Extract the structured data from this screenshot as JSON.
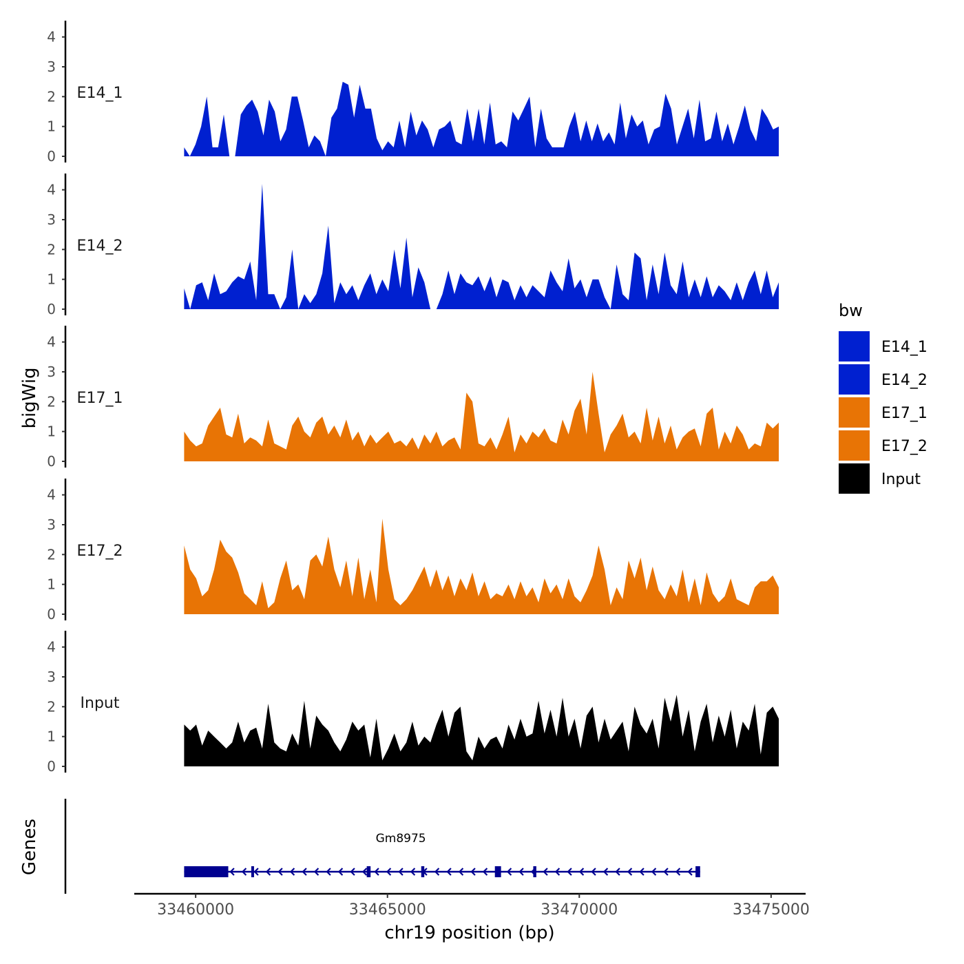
{
  "chart_data": {
    "type": "area",
    "ylabel": "bigWig",
    "xlabel": "chr19 position (bp)",
    "region": [
      33459700,
      33475200
    ],
    "xlim": [
      33458400,
      33475900
    ],
    "x_ticks": [
      33460000,
      33465000,
      33470000,
      33475000
    ],
    "x_tick_labels": [
      "33460000",
      "33465000",
      "33470000",
      "33475000"
    ],
    "ylim": [
      0,
      4.5
    ],
    "y_ticks": [
      0,
      1,
      2,
      3,
      4
    ],
    "y_tick_labels": [
      "0",
      "1",
      "2",
      "3",
      "4"
    ],
    "legend": {
      "title": "bw",
      "position": "right",
      "entries": [
        {
          "label": "E14_1",
          "color": "#0020D0"
        },
        {
          "label": "E14_2",
          "color": "#0020D0"
        },
        {
          "label": "E17_1",
          "color": "#E87405"
        },
        {
          "label": "E17_2",
          "color": "#E87405"
        },
        {
          "label": "Input",
          "color": "#000000"
        }
      ]
    },
    "tracks": [
      {
        "name": "E14_1",
        "color": "#0020D0",
        "values": [
          0.3,
          0.0,
          0.4,
          1.0,
          2.0,
          0.3,
          0.3,
          1.4,
          0.0,
          0.0,
          1.4,
          1.7,
          1.9,
          1.5,
          0.7,
          1.9,
          1.5,
          0.5,
          0.9,
          2.0,
          2.0,
          1.2,
          0.3,
          0.7,
          0.5,
          0.0,
          1.3,
          1.6,
          2.5,
          2.4,
          1.3,
          2.4,
          1.6,
          1.6,
          0.6,
          0.2,
          0.5,
          0.3,
          1.2,
          0.3,
          1.5,
          0.7,
          1.2,
          0.9,
          0.3,
          0.9,
          1.0,
          1.2,
          0.5,
          0.4,
          1.6,
          0.5,
          1.6,
          0.4,
          1.8,
          0.4,
          0.5,
          0.3,
          1.5,
          1.2,
          1.6,
          2.0,
          0.3,
          1.6,
          0.6,
          0.3,
          0.3,
          0.3,
          1.0,
          1.5,
          0.5,
          1.2,
          0.5,
          1.1,
          0.5,
          0.8,
          0.4,
          1.8,
          0.6,
          1.4,
          1.0,
          1.2,
          0.4,
          0.9,
          1.0,
          2.1,
          1.6,
          0.4,
          1.0,
          1.6,
          0.6,
          1.9,
          0.5,
          0.6,
          1.5,
          0.5,
          1.1,
          0.4,
          1.0,
          1.7,
          0.9,
          0.5,
          1.6,
          1.3,
          0.9,
          1.0
        ]
      },
      {
        "name": "E14_2",
        "color": "#0020D0",
        "values": [
          0.7,
          0.0,
          0.8,
          0.9,
          0.3,
          1.2,
          0.5,
          0.6,
          0.9,
          1.1,
          1.0,
          1.6,
          0.3,
          4.2,
          0.5,
          0.5,
          0.0,
          0.4,
          2.0,
          0.0,
          0.5,
          0.2,
          0.5,
          1.2,
          2.8,
          0.2,
          0.9,
          0.5,
          0.8,
          0.3,
          0.8,
          1.2,
          0.5,
          1.0,
          0.6,
          2.0,
          0.7,
          2.4,
          0.4,
          1.4,
          0.9,
          0.0,
          0.0,
          0.5,
          1.3,
          0.5,
          1.2,
          0.9,
          0.8,
          1.1,
          0.6,
          1.1,
          0.4,
          1.0,
          0.9,
          0.3,
          0.8,
          0.4,
          0.8,
          0.6,
          0.4,
          1.3,
          0.9,
          0.6,
          1.7,
          0.7,
          1.0,
          0.4,
          1.0,
          1.0,
          0.4,
          0.0,
          1.5,
          0.5,
          0.3,
          1.9,
          1.7,
          0.3,
          1.5,
          0.5,
          1.9,
          0.8,
          0.5,
          1.6,
          0.4,
          1.0,
          0.4,
          1.1,
          0.4,
          0.8,
          0.6,
          0.3,
          0.9,
          0.3,
          0.9,
          1.3,
          0.5,
          1.3,
          0.4,
          0.9
        ]
      },
      {
        "name": "E17_1",
        "color": "#E87405",
        "values": [
          1.0,
          0.7,
          0.5,
          0.6,
          1.2,
          1.5,
          1.8,
          0.9,
          0.8,
          1.6,
          0.6,
          0.8,
          0.7,
          0.5,
          1.4,
          0.6,
          0.5,
          0.4,
          1.2,
          1.5,
          1.0,
          0.8,
          1.3,
          1.5,
          0.9,
          1.2,
          0.8,
          1.4,
          0.7,
          1.0,
          0.5,
          0.9,
          0.6,
          0.8,
          1.0,
          0.6,
          0.7,
          0.5,
          0.8,
          0.4,
          0.9,
          0.6,
          1.0,
          0.5,
          0.7,
          0.8,
          0.4,
          2.3,
          2.0,
          0.6,
          0.5,
          0.8,
          0.4,
          0.9,
          1.5,
          0.3,
          0.9,
          0.6,
          1.0,
          0.8,
          1.1,
          0.7,
          0.6,
          1.4,
          0.9,
          1.7,
          2.1,
          0.9,
          3.0,
          1.6,
          0.3,
          0.9,
          1.2,
          1.6,
          0.8,
          1.0,
          0.6,
          1.8,
          0.7,
          1.5,
          0.6,
          1.2,
          0.4,
          0.8,
          1.0,
          1.1,
          0.5,
          1.6,
          1.8,
          0.4,
          1.0,
          0.6,
          1.2,
          0.9,
          0.4,
          0.6,
          0.5,
          1.3,
          1.1,
          1.3
        ]
      },
      {
        "name": "E17_2",
        "color": "#E87405",
        "values": [
          2.3,
          1.5,
          1.2,
          0.6,
          0.8,
          1.5,
          2.5,
          2.1,
          1.9,
          1.4,
          0.7,
          0.5,
          0.3,
          1.1,
          0.2,
          0.4,
          1.2,
          1.8,
          0.8,
          1.0,
          0.5,
          1.8,
          2.0,
          1.6,
          2.6,
          1.5,
          0.9,
          1.8,
          0.6,
          1.9,
          0.5,
          1.5,
          0.4,
          3.2,
          1.5,
          0.5,
          0.3,
          0.5,
          0.8,
          1.2,
          1.6,
          0.9,
          1.5,
          0.8,
          1.3,
          0.6,
          1.2,
          0.8,
          1.4,
          0.6,
          1.1,
          0.5,
          0.7,
          0.6,
          1.0,
          0.5,
          1.1,
          0.6,
          0.9,
          0.4,
          1.2,
          0.7,
          1.0,
          0.5,
          1.2,
          0.6,
          0.4,
          0.8,
          1.3,
          2.3,
          1.5,
          0.3,
          0.9,
          0.5,
          1.8,
          1.2,
          1.9,
          0.8,
          1.6,
          0.8,
          0.5,
          1.0,
          0.6,
          1.5,
          0.4,
          1.2,
          0.3,
          1.4,
          0.7,
          0.4,
          0.6,
          1.2,
          0.5,
          0.4,
          0.3,
          0.9,
          1.1,
          1.1,
          1.3,
          0.9
        ]
      },
      {
        "name": "Input",
        "color": "#000000",
        "values": [
          1.4,
          1.2,
          1.4,
          0.7,
          1.2,
          1.0,
          0.8,
          0.6,
          0.8,
          1.5,
          0.8,
          1.2,
          1.3,
          0.6,
          2.1,
          0.8,
          0.6,
          0.5,
          1.1,
          0.7,
          2.2,
          0.6,
          1.7,
          1.4,
          1.2,
          0.8,
          0.5,
          0.9,
          1.5,
          1.2,
          1.4,
          0.3,
          1.6,
          0.2,
          0.6,
          1.1,
          0.5,
          0.8,
          1.5,
          0.7,
          1.0,
          0.8,
          1.4,
          1.9,
          1.0,
          1.8,
          2.0,
          0.5,
          0.2,
          1.0,
          0.6,
          0.9,
          1.0,
          0.6,
          1.4,
          0.9,
          1.6,
          1.0,
          1.1,
          2.2,
          1.1,
          1.9,
          1.0,
          2.3,
          1.0,
          1.6,
          0.6,
          1.7,
          2.0,
          0.8,
          1.6,
          0.9,
          1.2,
          1.5,
          0.5,
          2.0,
          1.4,
          1.1,
          1.6,
          0.6,
          2.3,
          1.5,
          2.4,
          1.0,
          1.9,
          0.5,
          1.5,
          2.1,
          0.8,
          1.7,
          1.0,
          1.9,
          0.6,
          1.5,
          1.2,
          2.1,
          0.4,
          1.8,
          2.0,
          1.6
        ]
      }
    ],
    "genes_track": {
      "ylabel": "Genes",
      "genes": [
        {
          "name": "Gm8975",
          "start": 33459700,
          "end": 33473150,
          "strand": "-",
          "color": "#000090",
          "exons": [
            [
              33459700,
              33460850
            ],
            [
              33461450,
              33461500
            ],
            [
              33464460,
              33464560
            ],
            [
              33465880,
              33465960
            ],
            [
              33467800,
              33467960
            ],
            [
              33468800,
              33468880
            ],
            [
              33473030,
              33473150
            ]
          ]
        }
      ]
    }
  }
}
